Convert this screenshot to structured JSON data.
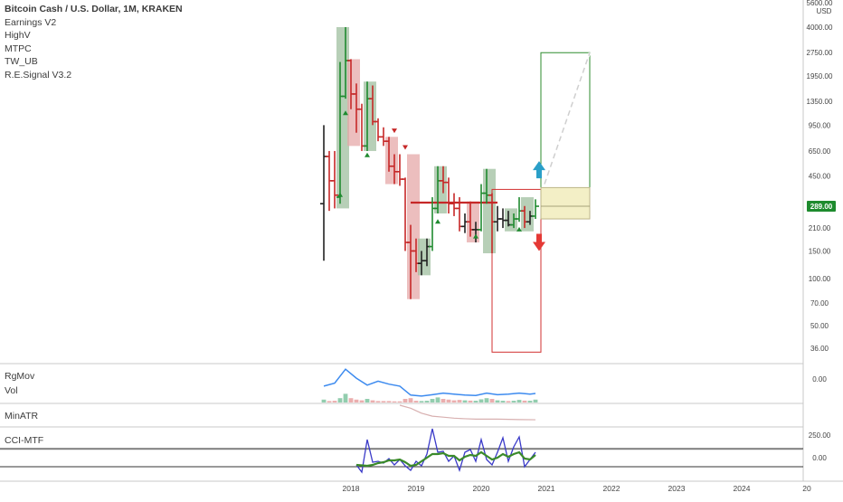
{
  "header": {
    "title": "Bitcoin Cash / U.S. Dollar, 1M, KRAKEN",
    "indicators": [
      "Earnings V2",
      "HighV",
      "MTPC",
      "TW_UB",
      "R.E.Signal V3.2"
    ]
  },
  "price_axis": {
    "currency": "USD",
    "top_label": "5600.00",
    "ticks": [
      "4000.00",
      "2750.00",
      "1950.00",
      "1350.00",
      "950.00",
      "650.00",
      "450.00",
      "210.00",
      "150.00",
      "100.00",
      "70.00",
      "50.00",
      "36.00"
    ],
    "current_price": "289.00",
    "current_price_color": "#1e8b2e"
  },
  "x_axis": {
    "labels": [
      "2018",
      "2019",
      "2020",
      "2021",
      "2022",
      "2023",
      "2024",
      "20"
    ]
  },
  "panels": {
    "rgmov": {
      "label": "RgMov",
      "axis_tick": "0.00"
    },
    "vol": {
      "label": "Vol"
    },
    "minatr": {
      "label": "MinATR"
    },
    "cci": {
      "label": "CCI-MTF",
      "axis_ticks": [
        "250.00",
        "0.00"
      ]
    }
  },
  "colors": {
    "up": "#1f8a2f",
    "down": "#c62828",
    "neutral": "#222222",
    "up_box": "#9fbf9f",
    "down_box": "#e6a8a8",
    "rgmov_line": "#3d8bef",
    "cci_line": "#3a3ac8",
    "cci_signal": "#3a8a2a",
    "minatr_line": "#d8b0b0",
    "target_box": "#2e8b2e",
    "stop_box": "#d23030",
    "entry_box": "#f3efc6",
    "arrow_up": "#2a9fc8",
    "arrow_down": "#e53935"
  },
  "chart_data": {
    "type": "candlestick",
    "title": "Bitcoin Cash / U.S. Dollar, 1M, KRAKEN",
    "interval": "1M",
    "scale": "log",
    "ylim": [
      30,
      5600
    ],
    "x_range": [
      "2017-06",
      "2025-01"
    ],
    "candles": [
      {
        "t": "2017-08",
        "o": 300,
        "h": 950,
        "l": 130,
        "c": 600,
        "dir": "neutral"
      },
      {
        "t": "2017-09",
        "o": 600,
        "h": 650,
        "l": 270,
        "c": 420,
        "dir": "down"
      },
      {
        "t": "2017-10",
        "o": 420,
        "h": 650,
        "l": 280,
        "c": 340,
        "dir": "down"
      },
      {
        "t": "2017-11",
        "o": 330,
        "h": 2400,
        "l": 300,
        "c": 1450,
        "dir": "up"
      },
      {
        "t": "2017-12",
        "o": 1450,
        "h": 4000,
        "l": 1400,
        "c": 2450,
        "dir": "up"
      },
      {
        "t": "2018-01",
        "o": 2450,
        "h": 2500,
        "l": 1200,
        "c": 1500,
        "dir": "down"
      },
      {
        "t": "2018-02",
        "o": 1500,
        "h": 1750,
        "l": 850,
        "c": 1200,
        "dir": "down"
      },
      {
        "t": "2018-03",
        "o": 1200,
        "h": 1300,
        "l": 650,
        "c": 700,
        "dir": "down"
      },
      {
        "t": "2018-04",
        "o": 700,
        "h": 1800,
        "l": 650,
        "c": 1400,
        "dir": "up"
      },
      {
        "t": "2018-05",
        "o": 1400,
        "h": 1700,
        "l": 950,
        "c": 1000,
        "dir": "down"
      },
      {
        "t": "2018-06",
        "o": 1000,
        "h": 1050,
        "l": 750,
        "c": 800,
        "dir": "down"
      },
      {
        "t": "2018-07",
        "o": 800,
        "h": 920,
        "l": 700,
        "c": 750,
        "dir": "down"
      },
      {
        "t": "2018-08",
        "o": 750,
        "h": 800,
        "l": 480,
        "c": 520,
        "dir": "down"
      },
      {
        "t": "2018-09",
        "o": 520,
        "h": 620,
        "l": 400,
        "c": 480,
        "dir": "down"
      },
      {
        "t": "2018-10",
        "o": 480,
        "h": 620,
        "l": 390,
        "c": 430,
        "dir": "down"
      },
      {
        "t": "2018-11",
        "o": 430,
        "h": 440,
        "l": 150,
        "c": 170,
        "dir": "down"
      },
      {
        "t": "2018-12",
        "o": 170,
        "h": 220,
        "l": 74,
        "c": 150,
        "dir": "down"
      },
      {
        "t": "2019-01",
        "o": 150,
        "h": 180,
        "l": 110,
        "c": 125,
        "dir": "down"
      },
      {
        "t": "2019-02",
        "o": 125,
        "h": 150,
        "l": 105,
        "c": 130,
        "dir": "neutral"
      },
      {
        "t": "2019-03",
        "o": 130,
        "h": 180,
        "l": 120,
        "c": 160,
        "dir": "neutral"
      },
      {
        "t": "2019-04",
        "o": 160,
        "h": 330,
        "l": 150,
        "c": 280,
        "dir": "up"
      },
      {
        "t": "2019-05",
        "o": 280,
        "h": 520,
        "l": 260,
        "c": 420,
        "dir": "up"
      },
      {
        "t": "2019-06",
        "o": 420,
        "h": 520,
        "l": 350,
        "c": 410,
        "dir": "down"
      },
      {
        "t": "2019-07",
        "o": 410,
        "h": 440,
        "l": 260,
        "c": 300,
        "dir": "down"
      },
      {
        "t": "2019-08",
        "o": 300,
        "h": 350,
        "l": 250,
        "c": 280,
        "dir": "down"
      },
      {
        "t": "2019-09",
        "o": 280,
        "h": 330,
        "l": 200,
        "c": 215,
        "dir": "down"
      },
      {
        "t": "2019-10",
        "o": 215,
        "h": 260,
        "l": 195,
        "c": 230,
        "dir": "neutral"
      },
      {
        "t": "2019-11",
        "o": 230,
        "h": 310,
        "l": 185,
        "c": 205,
        "dir": "down"
      },
      {
        "t": "2019-12",
        "o": 205,
        "h": 230,
        "l": 170,
        "c": 205,
        "dir": "neutral"
      },
      {
        "t": "2020-01",
        "o": 205,
        "h": 400,
        "l": 200,
        "c": 350,
        "dir": "up"
      },
      {
        "t": "2020-02",
        "o": 350,
        "h": 500,
        "l": 300,
        "c": 340,
        "dir": "up"
      },
      {
        "t": "2020-03",
        "o": 340,
        "h": 350,
        "l": 145,
        "c": 230,
        "dir": "down"
      },
      {
        "t": "2020-04",
        "o": 230,
        "h": 290,
        "l": 200,
        "c": 240,
        "dir": "neutral"
      },
      {
        "t": "2020-05",
        "o": 240,
        "h": 280,
        "l": 210,
        "c": 235,
        "dir": "neutral"
      },
      {
        "t": "2020-06",
        "o": 235,
        "h": 270,
        "l": 215,
        "c": 220,
        "dir": "neutral"
      },
      {
        "t": "2020-07",
        "o": 220,
        "h": 260,
        "l": 210,
        "c": 240,
        "dir": "up"
      },
      {
        "t": "2020-08",
        "o": 240,
        "h": 330,
        "l": 230,
        "c": 270,
        "dir": "up"
      },
      {
        "t": "2020-09",
        "o": 270,
        "h": 290,
        "l": 210,
        "c": 230,
        "dir": "down"
      },
      {
        "t": "2020-10",
        "o": 230,
        "h": 270,
        "l": 220,
        "c": 250,
        "dir": "neutral"
      },
      {
        "t": "2020-11",
        "o": 250,
        "h": 320,
        "l": 240,
        "c": 289,
        "dir": "up"
      }
    ],
    "signal_boxes": [
      {
        "t0": "2017-11",
        "t1": "2017-12",
        "low": 280,
        "high": 4000,
        "dir": "up"
      },
      {
        "t0": "2018-01",
        "t1": "2018-02",
        "low": 700,
        "high": 2500,
        "dir": "down"
      },
      {
        "t0": "2018-04",
        "t1": "2018-05",
        "low": 650,
        "high": 1800,
        "dir": "up"
      },
      {
        "t0": "2018-08",
        "t1": "2018-09",
        "low": 400,
        "high": 800,
        "dir": "down"
      },
      {
        "t0": "2018-12",
        "t1": "2019-01",
        "low": 74,
        "high": 620,
        "dir": "down"
      },
      {
        "t0": "2019-02",
        "t1": "2019-03",
        "low": 105,
        "high": 180,
        "dir": "neutral"
      },
      {
        "t0": "2019-05",
        "t1": "2019-06",
        "low": 260,
        "high": 520,
        "dir": "up"
      },
      {
        "t0": "2019-11",
        "t1": "2019-12",
        "low": 170,
        "high": 310,
        "dir": "down"
      },
      {
        "t0": "2020-02",
        "t1": "2020-03",
        "low": 145,
        "high": 500,
        "dir": "up"
      },
      {
        "t0": "2020-06",
        "t1": "2020-07",
        "low": 200,
        "high": 280,
        "dir": "neutral"
      },
      {
        "t0": "2020-09",
        "t1": "2020-10",
        "low": 200,
        "high": 330,
        "dir": "up"
      }
    ],
    "support_line": {
      "t0": "2018-12",
      "t1": "2020-04",
      "value": 305
    },
    "projection": {
      "entry_zone": {
        "t0": "2020-12",
        "t1": "2021-09",
        "low": 240,
        "high": 380
      },
      "target_box": {
        "t0": "2020-12",
        "t1": "2021-09",
        "low": 340,
        "high": 2750
      },
      "stop_box": {
        "t0": "2020-03",
        "t1": "2020-12",
        "low": 34,
        "high": 370
      },
      "projection_line": {
        "from": {
          "t": "2020-12",
          "v": 400
        },
        "to": {
          "t": "2021-09",
          "v": 2750
        }
      }
    },
    "rgmov": {
      "t": [
        "2017-08",
        "2017-10",
        "2017-12",
        "2018-02",
        "2018-04",
        "2018-06",
        "2018-08",
        "2018-10",
        "2018-12",
        "2019-02",
        "2019-04",
        "2019-06",
        "2019-08",
        "2019-10",
        "2019-12",
        "2020-02",
        "2020-04",
        "2020-06",
        "2020-08",
        "2020-10",
        "2020-11"
      ],
      "values": [
        0.05,
        0.2,
        0.9,
        0.45,
        0.1,
        0.3,
        0.15,
        0.05,
        -0.4,
        -0.45,
        -0.38,
        -0.3,
        -0.35,
        -0.4,
        -0.42,
        -0.3,
        -0.38,
        -0.35,
        -0.3,
        -0.35,
        -0.32
      ]
    },
    "vol": {
      "t": [
        "2017-08",
        "2017-09",
        "2017-10",
        "2017-11",
        "2017-12",
        "2018-01",
        "2018-02",
        "2018-03",
        "2018-04",
        "2018-05",
        "2018-06",
        "2018-07",
        "2018-08",
        "2018-09",
        "2018-10",
        "2018-11",
        "2018-12",
        "2019-01",
        "2019-02",
        "2019-03",
        "2019-04",
        "2019-05",
        "2019-06",
        "2019-07",
        "2019-08",
        "2019-09",
        "2019-10",
        "2019-11",
        "2019-12",
        "2020-01",
        "2020-02",
        "2020-03",
        "2020-04",
        "2020-05",
        "2020-06",
        "2020-07",
        "2020-08",
        "2020-09",
        "2020-10",
        "2020-11"
      ],
      "values": [
        2,
        1,
        1.2,
        3,
        6,
        3,
        2,
        1.5,
        2.5,
        1.5,
        1,
        1,
        1,
        0.8,
        0.8,
        2.5,
        3,
        1.2,
        1,
        1.2,
        2.5,
        3.5,
        2.5,
        2,
        1.5,
        1.8,
        1.5,
        1.3,
        1.2,
        2.2,
        3,
        2.5,
        1.5,
        1.2,
        1,
        1.2,
        1.8,
        1.3,
        1.2,
        2
      ],
      "dir": [
        "up",
        "down",
        "down",
        "up",
        "up",
        "down",
        "down",
        "down",
        "up",
        "down",
        "down",
        "down",
        "down",
        "down",
        "down",
        "down",
        "down",
        "down",
        "up",
        "up",
        "up",
        "up",
        "down",
        "down",
        "down",
        "down",
        "up",
        "down",
        "up",
        "up",
        "up",
        "down",
        "up",
        "up",
        "down",
        "up",
        "up",
        "down",
        "up",
        "up"
      ]
    },
    "minatr": {
      "t": [
        "2018-10",
        "2018-12",
        "2019-02",
        "2019-04",
        "2019-06",
        "2019-08",
        "2019-10",
        "2019-12",
        "2020-04",
        "2020-08",
        "2020-11"
      ],
      "values": [
        1.0,
        0.85,
        0.6,
        0.45,
        0.4,
        0.35,
        0.32,
        0.3,
        0.3,
        0.28,
        0.27
      ]
    },
    "cci": {
      "t": [
        "2018-02",
        "2018-03",
        "2018-04",
        "2018-05",
        "2018-06",
        "2018-07",
        "2018-08",
        "2018-09",
        "2018-10",
        "2018-11",
        "2018-12",
        "2019-01",
        "2019-02",
        "2019-03",
        "2019-04",
        "2019-05",
        "2019-06",
        "2019-07",
        "2019-08",
        "2019-09",
        "2019-10",
        "2019-11",
        "2019-12",
        "2020-01",
        "2020-02",
        "2020-03",
        "2020-04",
        "2020-05",
        "2020-06",
        "2020-07",
        "2020-08",
        "2020-09",
        "2020-10",
        "2020-11"
      ],
      "values": [
        -80,
        -160,
        200,
        -50,
        -40,
        -60,
        -10,
        -80,
        -20,
        -90,
        -140,
        -40,
        -90,
        40,
        320,
        60,
        70,
        -40,
        20,
        -140,
        60,
        90,
        -40,
        200,
        -20,
        -80,
        60,
        220,
        -40,
        120,
        230,
        -100,
        -20,
        60
      ],
      "signal": [
        -80,
        -85,
        -90,
        -80,
        -60,
        -50,
        -30,
        -30,
        -20,
        -50,
        -90,
        -80,
        -40,
        0,
        40,
        40,
        50,
        20,
        20,
        -30,
        10,
        30,
        20,
        60,
        20,
        -20,
        0,
        40,
        10,
        40,
        60,
        -10,
        -20,
        30
      ]
    },
    "markers": [
      {
        "t": "2017-12",
        "v": 1130,
        "shape": "triangle-up",
        "color": "#1f8a2f"
      },
      {
        "t": "2017-11",
        "v": 340,
        "shape": "triangle-up",
        "color": "#1f8a2f"
      },
      {
        "t": "2018-04",
        "v": 610,
        "shape": "triangle-up",
        "color": "#1f8a2f"
      },
      {
        "t": "2018-09",
        "v": 880,
        "shape": "triangle-down",
        "color": "#c62828"
      },
      {
        "t": "2018-11",
        "v": 690,
        "shape": "triangle-down",
        "color": "#c62828"
      },
      {
        "t": "2019-05",
        "v": 230,
        "shape": "triangle-up",
        "color": "#1f8a2f"
      },
      {
        "t": "2019-12",
        "v": 185,
        "shape": "triangle-up",
        "color": "#1f8a2f"
      },
      {
        "t": "2020-08",
        "v": 205,
        "shape": "triangle-up",
        "color": "#1f8a2f"
      }
    ]
  }
}
